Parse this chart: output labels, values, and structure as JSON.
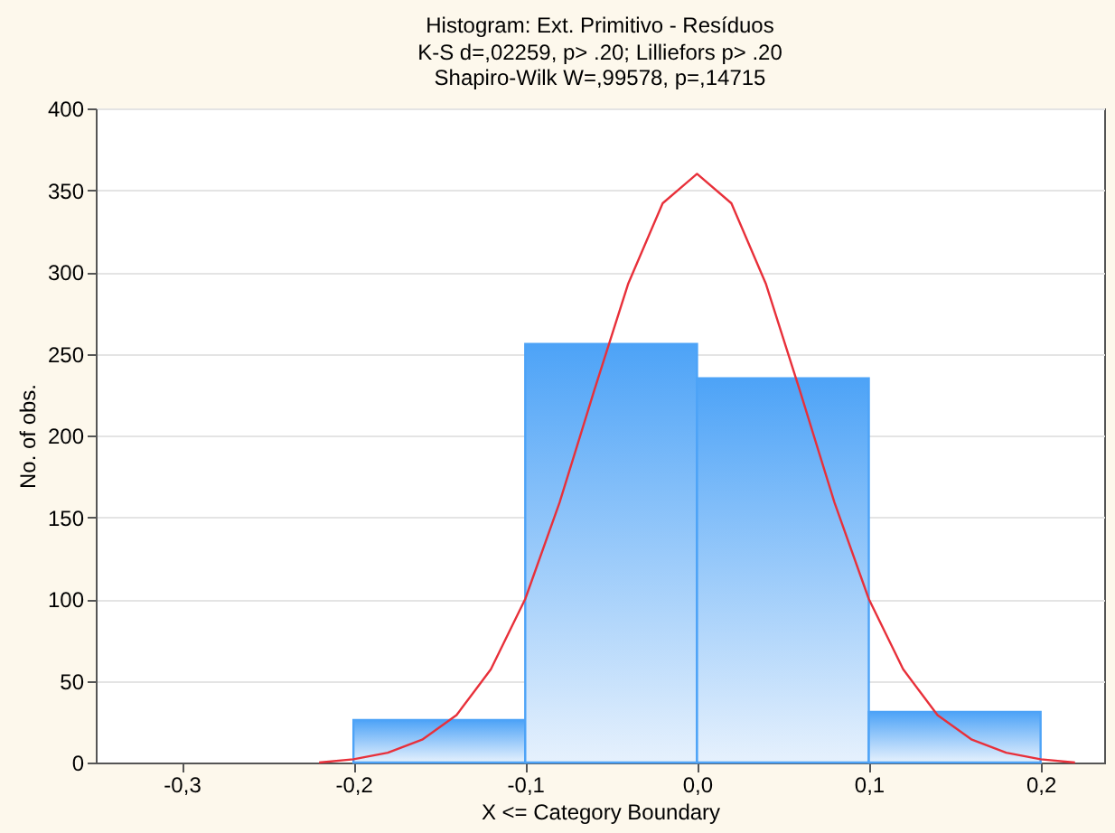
{
  "chart_data": {
    "type": "histogram",
    "title": "Histogram: Ext. Primitivo - Resíduos",
    "subtitle": "K-S d=,02259, p> .20; Lilliefors p> .20\nShapiro-Wilk W=,99578, p=,14715",
    "xlabel": "X <= Category Boundary",
    "ylabel": "No. of obs.",
    "bins": [
      -0.2,
      -0.1,
      0,
      0.1,
      0.2
    ],
    "series": [
      {
        "color": "#4da3f7",
        "values": [
          26,
          256,
          235,
          31
        ]
      },
      {
        "type": "line",
        "color": "#e8303a",
        "x": [
          -0.22,
          -0.2,
          -0.18,
          -0.16,
          -0.14,
          -0.12,
          -0.1,
          -0.08,
          -0.06,
          -0.04,
          -0.02,
          0,
          0.02,
          0.04,
          0.06,
          0.08,
          0.1,
          0.12,
          0.14,
          0.16,
          0.18,
          0.2,
          0.22
        ],
        "values": [
          0,
          2,
          6,
          14,
          29,
          57,
          100,
          159,
          227,
          293,
          342,
          360,
          342,
          293,
          227,
          159,
          100,
          57,
          29,
          14,
          6,
          2,
          0
        ]
      }
    ],
    "xlim": [
      -0.35,
      0.237
    ],
    "xticks": [
      {
        "value": -0.3,
        "label": "-0,3"
      },
      {
        "value": -0.2,
        "label": "-0,2"
      },
      {
        "value": -0.1,
        "label": "-0,1"
      },
      {
        "value": 0,
        "label": "0,0"
      },
      {
        "value": 0.1,
        "label": "0,1"
      },
      {
        "value": 0.2,
        "label": "0,2"
      }
    ],
    "ylim": [
      0,
      400
    ],
    "yticks": [
      0,
      50,
      100,
      150,
      200,
      250,
      300,
      350,
      400
    ],
    "grid": "y"
  }
}
